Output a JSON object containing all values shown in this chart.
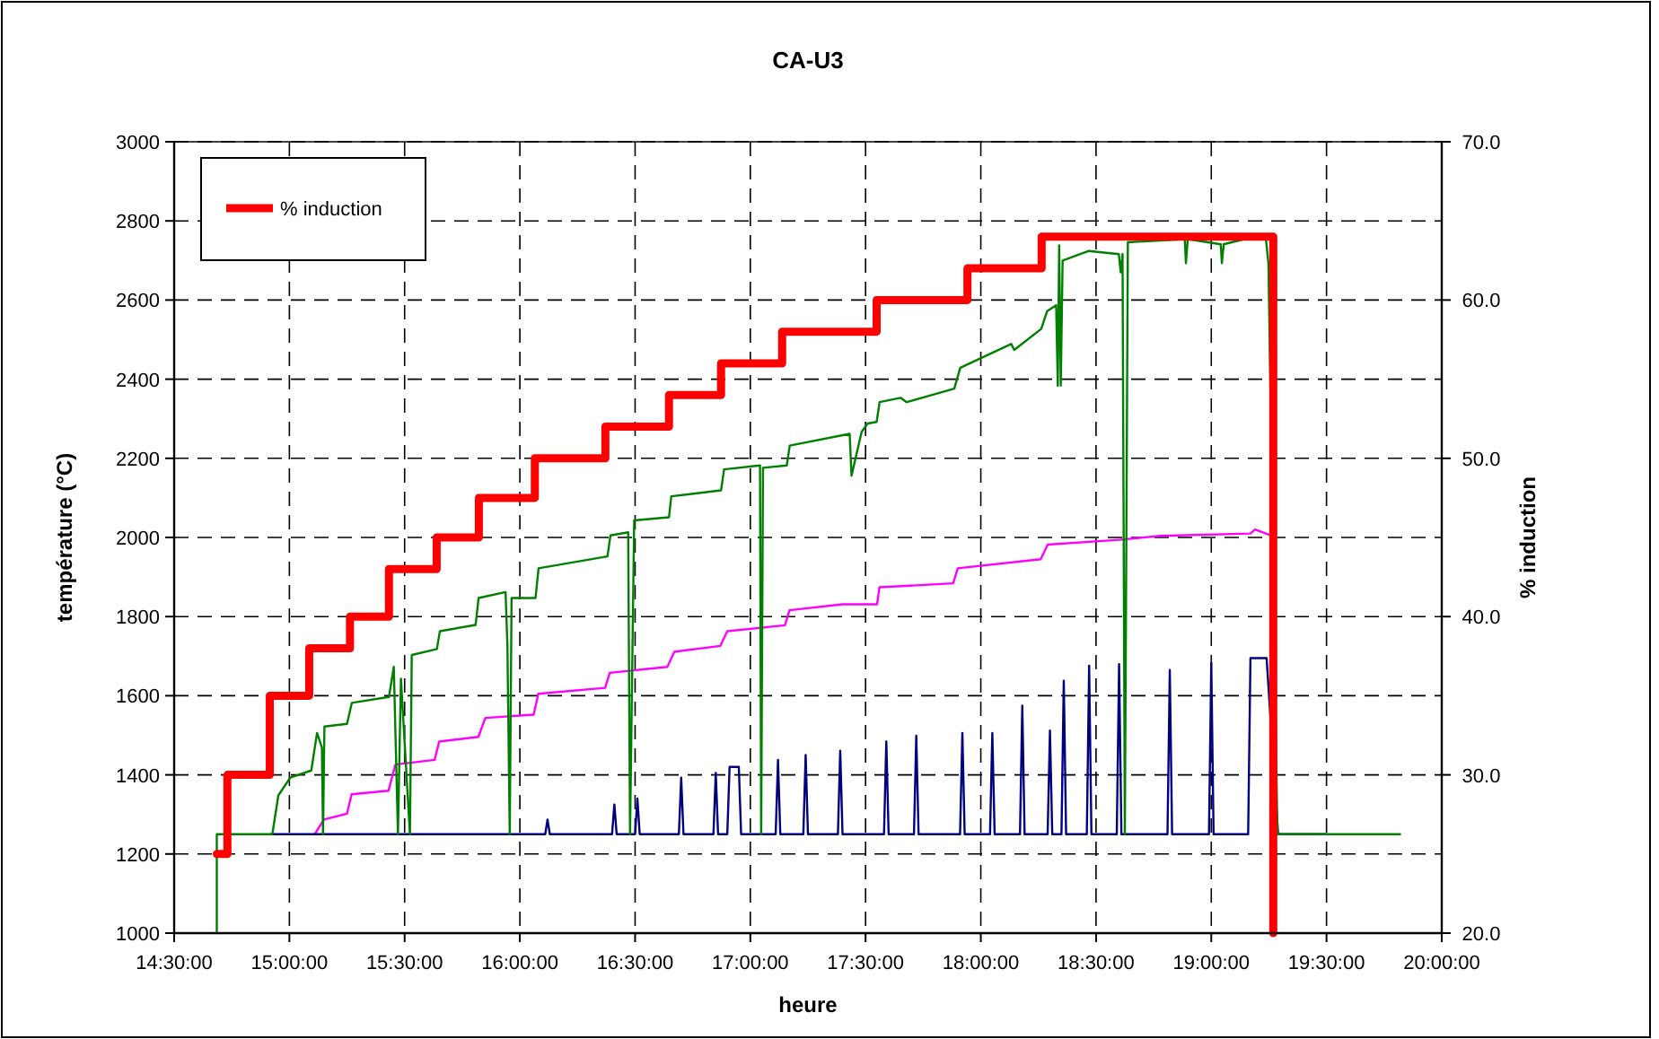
{
  "chart_data": {
    "type": "line",
    "title": "CA-U3",
    "xlabel": "heure",
    "ylabel": "température (°C)",
    "y2label": "% induction",
    "xlim": [
      14.5,
      20
    ],
    "xticks": [
      {
        "value": 14.5,
        "label": "14:30:00"
      },
      {
        "value": 15,
        "label": "15:00:00"
      },
      {
        "value": 15.5,
        "label": "15:30:00"
      },
      {
        "value": 16,
        "label": "16:00:00"
      },
      {
        "value": 16.5,
        "label": "16:30:00"
      },
      {
        "value": 17,
        "label": "17:00:00"
      },
      {
        "value": 17.5,
        "label": "17:30:00"
      },
      {
        "value": 18,
        "label": "18:00:00"
      },
      {
        "value": 18.5,
        "label": "18:30:00"
      },
      {
        "value": 19,
        "label": "19:00:00"
      },
      {
        "value": 19.5,
        "label": "19:30:00"
      },
      {
        "value": 20,
        "label": "20:00:00"
      }
    ],
    "ylim": [
      1000,
      3000
    ],
    "yticks": [
      1000,
      1200,
      1400,
      1600,
      1800,
      2000,
      2200,
      2400,
      2600,
      2800,
      3000
    ],
    "y2lim": [
      20,
      70
    ],
    "y2ticks": [
      {
        "value": 20,
        "label": "20.0"
      },
      {
        "value": 30,
        "label": "30.0"
      },
      {
        "value": 40,
        "label": "40.0"
      },
      {
        "value": 50,
        "label": "50.0"
      },
      {
        "value": 60,
        "label": "60.0"
      },
      {
        "value": 70,
        "label": "70.0"
      }
    ],
    "grid": true,
    "legend": "top left",
    "marker": "none",
    "series": [
      {
        "color": "#ff00ff",
        "x": [
          15.11,
          15.15,
          15.25,
          15.27,
          15.43,
          15.46,
          15.63,
          15.65,
          15.82,
          15.85,
          16.06,
          16.08,
          16.37,
          16.39,
          16.64,
          16.67,
          16.87,
          16.9,
          17.15,
          17.17,
          17.4,
          17.55,
          17.56,
          17.88,
          17.9,
          18.26,
          18.29,
          18.6,
          18.78,
          19.17,
          19.19,
          19.25
        ],
        "values": [
          1250,
          1287,
          1302,
          1351,
          1360,
          1426,
          1438,
          1484,
          1496,
          1544,
          1552,
          1605,
          1620,
          1658,
          1673,
          1711,
          1726,
          1763,
          1778,
          1816,
          1831,
          1831,
          1874,
          1884,
          1922,
          1945,
          1982,
          1994,
          2004,
          2010,
          2020,
          2007
        ]
      },
      {
        "color": "#000080",
        "x": [
          14.92,
          16.11,
          16.12,
          16.13,
          16.4,
          16.41,
          16.42,
          16.5,
          16.51,
          16.52,
          16.69,
          16.7,
          16.71,
          16.84,
          16.85,
          16.86,
          16.9,
          16.91,
          16.95,
          16.96,
          17.11,
          17.12,
          17.13,
          17.23,
          17.24,
          17.25,
          17.38,
          17.39,
          17.4,
          17.58,
          17.59,
          17.6,
          17.71,
          17.72,
          17.73,
          17.91,
          17.92,
          17.93,
          18.04,
          18.05,
          18.06,
          18.17,
          18.18,
          18.19,
          18.29,
          18.3,
          18.31,
          18.35,
          18.36,
          18.37,
          18.46,
          18.47,
          18.48,
          18.59,
          18.6,
          18.61,
          18.81,
          18.82,
          18.83,
          18.99,
          19.0,
          19.01,
          19.16,
          19.17,
          19.24,
          19.29,
          19.5
        ],
        "values": [
          1250,
          1250,
          1287,
          1250,
          1250,
          1325,
          1250,
          1250,
          1340,
          1250,
          1250,
          1393,
          1250,
          1250,
          1405,
          1250,
          1250,
          1420,
          1420,
          1250,
          1250,
          1438,
          1250,
          1250,
          1450,
          1250,
          1250,
          1461,
          1250,
          1250,
          1484,
          1250,
          1250,
          1499,
          1250,
          1250,
          1506,
          1250,
          1250,
          1506,
          1250,
          1250,
          1575,
          1250,
          1250,
          1512,
          1250,
          1250,
          1638,
          1250,
          1250,
          1676,
          1250,
          1250,
          1680,
          1250,
          1250,
          1665,
          1250,
          1250,
          1683,
          1250,
          1250,
          1695,
          1695,
          1250,
          1250
        ]
      },
      {
        "color": "#008000",
        "x": [
          14.685,
          14.685,
          14.926,
          14.952,
          15.004,
          15.095,
          15.12,
          15.141,
          15.146,
          15.152,
          15.25,
          15.271,
          15.432,
          15.453,
          15.471,
          15.484,
          15.523,
          15.531,
          15.64,
          15.653,
          15.808,
          15.821,
          15.938,
          15.946,
          15.956,
          15.964,
          16.068,
          16.081,
          16.38,
          16.393,
          16.47,
          16.478,
          16.496,
          16.647,
          16.657,
          16.873,
          16.886,
          17.042,
          17.047,
          17.055,
          17.158,
          17.171,
          17.431,
          17.439,
          17.483,
          17.509,
          17.548,
          17.561,
          17.652,
          17.678,
          17.885,
          17.911,
          18.132,
          18.145,
          18.262,
          18.288,
          18.327,
          18.334,
          18.34,
          18.347,
          18.355,
          18.469,
          18.599,
          18.607,
          18.615,
          18.625,
          18.638,
          18.885,
          18.89,
          18.898,
          19.041,
          19.046,
          19.054,
          19.144,
          19.235,
          19.248,
          19.287,
          19.819
        ],
        "values": [
          1000,
          1250,
          1250,
          1348,
          1393,
          1411,
          1506,
          1469,
          1250,
          1522,
          1529,
          1582,
          1597,
          1673,
          1250,
          1643,
          1250,
          1703,
          1718,
          1763,
          1779,
          1847,
          1862,
          1726,
          1250,
          1847,
          1847,
          1922,
          1952,
          2005,
          2013,
          1250,
          2043,
          2051,
          2104,
          2119,
          2172,
          2182,
          1250,
          2176,
          2182,
          2232,
          2262,
          2156,
          2267,
          2288,
          2292,
          2342,
          2353,
          2342,
          2376,
          2429,
          2489,
          2474,
          2527,
          2572,
          2587,
          2383,
          2738,
          2384,
          2700,
          2724,
          2716,
          2670,
          2716,
          1250,
          2746,
          2754,
          2693,
          2754,
          2741,
          2693,
          2741,
          2754,
          2766,
          2693,
          1250,
          1250
        ]
      },
      {
        "name": "% induction",
        "color": "#ff0000",
        "type": "step",
        "axis": "y2",
        "x": [
          14.685,
          14.731,
          14.915,
          15.086,
          15.263,
          15.432,
          15.639,
          15.822,
          16.065,
          16.371,
          16.647,
          16.873,
          17.138,
          17.548,
          17.942,
          18.264,
          19.269
        ],
        "values": [
          25,
          30,
          35,
          38,
          40,
          43,
          45,
          47.5,
          50,
          52,
          54,
          56,
          58,
          60,
          62,
          64,
          20
        ]
      }
    ]
  }
}
